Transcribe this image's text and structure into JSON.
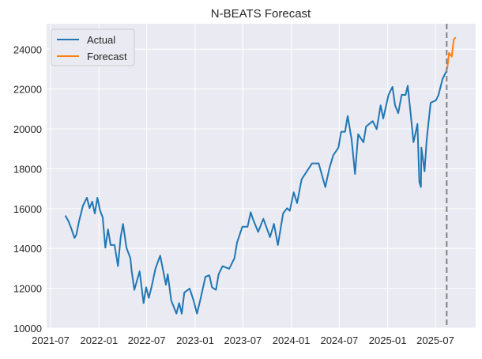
{
  "chart_data": {
    "type": "line",
    "title": "N-BEATS Forecast",
    "xlabel": "",
    "ylabel": "",
    "xlim": [
      "2021-06-16",
      "2025-12-01"
    ],
    "ylim": [
      10000,
      25280
    ],
    "grid": true,
    "legend_position": "upper-left",
    "x_ticks": [
      "2021-07",
      "2022-01",
      "2022-07",
      "2023-01",
      "2023-07",
      "2024-01",
      "2024-07",
      "2025-01",
      "2025-07"
    ],
    "y_ticks": [
      10000,
      12000,
      14000,
      16000,
      18000,
      20000,
      22000,
      24000
    ],
    "vertical_marker": {
      "date": "2025-08-13",
      "style": "dashed",
      "color": "#808080"
    },
    "series": [
      {
        "name": "Actual",
        "color": "#1f77b4",
        "points": [
          [
            "2021-08-26",
            15650
          ],
          [
            "2021-09-07",
            15360
          ],
          [
            "2021-09-17",
            15030
          ],
          [
            "2021-09-30",
            14530
          ],
          [
            "2021-10-07",
            14700
          ],
          [
            "2021-10-17",
            15360
          ],
          [
            "2021-11-01",
            16150
          ],
          [
            "2021-11-16",
            16550
          ],
          [
            "2021-11-26",
            16020
          ],
          [
            "2021-12-06",
            16350
          ],
          [
            "2021-12-16",
            15760
          ],
          [
            "2021-12-26",
            16550
          ],
          [
            "2022-01-05",
            15890
          ],
          [
            "2022-01-15",
            15560
          ],
          [
            "2022-01-25",
            14040
          ],
          [
            "2022-02-04",
            14960
          ],
          [
            "2022-02-14",
            14170
          ],
          [
            "2022-03-01",
            14170
          ],
          [
            "2022-03-14",
            13110
          ],
          [
            "2022-03-24",
            14570
          ],
          [
            "2022-04-02",
            15230
          ],
          [
            "2022-04-15",
            14040
          ],
          [
            "2022-04-30",
            13510
          ],
          [
            "2022-05-05",
            12850
          ],
          [
            "2022-05-15",
            11920
          ],
          [
            "2022-06-04",
            12850
          ],
          [
            "2022-06-19",
            11260
          ],
          [
            "2022-06-29",
            12050
          ],
          [
            "2022-07-09",
            11520
          ],
          [
            "2022-07-19",
            12050
          ],
          [
            "2022-08-03",
            12980
          ],
          [
            "2022-08-21",
            13640
          ],
          [
            "2022-09-02",
            12850
          ],
          [
            "2022-09-12",
            12180
          ],
          [
            "2022-09-19",
            12710
          ],
          [
            "2022-10-02",
            11390
          ],
          [
            "2022-10-22",
            10730
          ],
          [
            "2022-11-01",
            11260
          ],
          [
            "2022-11-11",
            10730
          ],
          [
            "2022-11-21",
            11790
          ],
          [
            "2022-12-11",
            11990
          ],
          [
            "2022-12-26",
            11390
          ],
          [
            "2023-01-08",
            10730
          ],
          [
            "2023-01-20",
            11390
          ],
          [
            "2023-02-09",
            12580
          ],
          [
            "2023-02-24",
            12650
          ],
          [
            "2023-03-06",
            12050
          ],
          [
            "2023-03-21",
            11920
          ],
          [
            "2023-03-31",
            12710
          ],
          [
            "2023-04-15",
            13110
          ],
          [
            "2023-05-10",
            12980
          ],
          [
            "2023-05-30",
            13510
          ],
          [
            "2023-06-09",
            14300
          ],
          [
            "2023-06-29",
            15090
          ],
          [
            "2023-07-19",
            15090
          ],
          [
            "2023-07-31",
            15820
          ],
          [
            "2023-08-08",
            15490
          ],
          [
            "2023-08-28",
            14830
          ],
          [
            "2023-09-17",
            15490
          ],
          [
            "2023-10-12",
            14570
          ],
          [
            "2023-10-27",
            15230
          ],
          [
            "2023-11-11",
            14170
          ],
          [
            "2023-12-01",
            15760
          ],
          [
            "2023-12-16",
            16020
          ],
          [
            "2023-12-26",
            15890
          ],
          [
            "2024-01-10",
            16820
          ],
          [
            "2024-01-23",
            16280
          ],
          [
            "2024-02-09",
            17470
          ],
          [
            "2024-02-29",
            17870
          ],
          [
            "2024-03-20",
            18270
          ],
          [
            "2024-04-14",
            18270
          ],
          [
            "2024-05-09",
            17080
          ],
          [
            "2024-05-24",
            18000
          ],
          [
            "2024-06-08",
            18670
          ],
          [
            "2024-06-28",
            19060
          ],
          [
            "2024-07-08",
            19860
          ],
          [
            "2024-07-23",
            19860
          ],
          [
            "2024-08-02",
            20650
          ],
          [
            "2024-08-17",
            19460
          ],
          [
            "2024-08-30",
            17740
          ],
          [
            "2024-09-11",
            19730
          ],
          [
            "2024-10-01",
            19330
          ],
          [
            "2024-10-11",
            20120
          ],
          [
            "2024-11-05",
            20390
          ],
          [
            "2024-11-20",
            19990
          ],
          [
            "2024-12-05",
            21180
          ],
          [
            "2024-12-15",
            20520
          ],
          [
            "2025-01-04",
            21710
          ],
          [
            "2025-01-19",
            22110
          ],
          [
            "2025-01-29",
            21180
          ],
          [
            "2025-02-10",
            20790
          ],
          [
            "2025-02-23",
            21710
          ],
          [
            "2025-03-10",
            21710
          ],
          [
            "2025-03-18",
            22170
          ],
          [
            "2025-03-30",
            20650
          ],
          [
            "2025-04-09",
            19330
          ],
          [
            "2025-04-24",
            20250
          ],
          [
            "2025-05-01",
            17340
          ],
          [
            "2025-05-07",
            17080
          ],
          [
            "2025-05-09",
            19060
          ],
          [
            "2025-05-21",
            17870
          ],
          [
            "2025-05-29",
            19460
          ],
          [
            "2025-06-13",
            21310
          ],
          [
            "2025-07-03",
            21440
          ],
          [
            "2025-07-13",
            21710
          ],
          [
            "2025-07-28",
            22500
          ],
          [
            "2025-08-12",
            22900
          ]
        ]
      },
      {
        "name": "Forecast",
        "color": "#ff7f0e",
        "points": [
          [
            "2025-08-15",
            23030
          ],
          [
            "2025-08-22",
            23820
          ],
          [
            "2025-09-01",
            23630
          ],
          [
            "2025-09-09",
            24490
          ],
          [
            "2025-09-16",
            24600
          ]
        ]
      }
    ]
  }
}
